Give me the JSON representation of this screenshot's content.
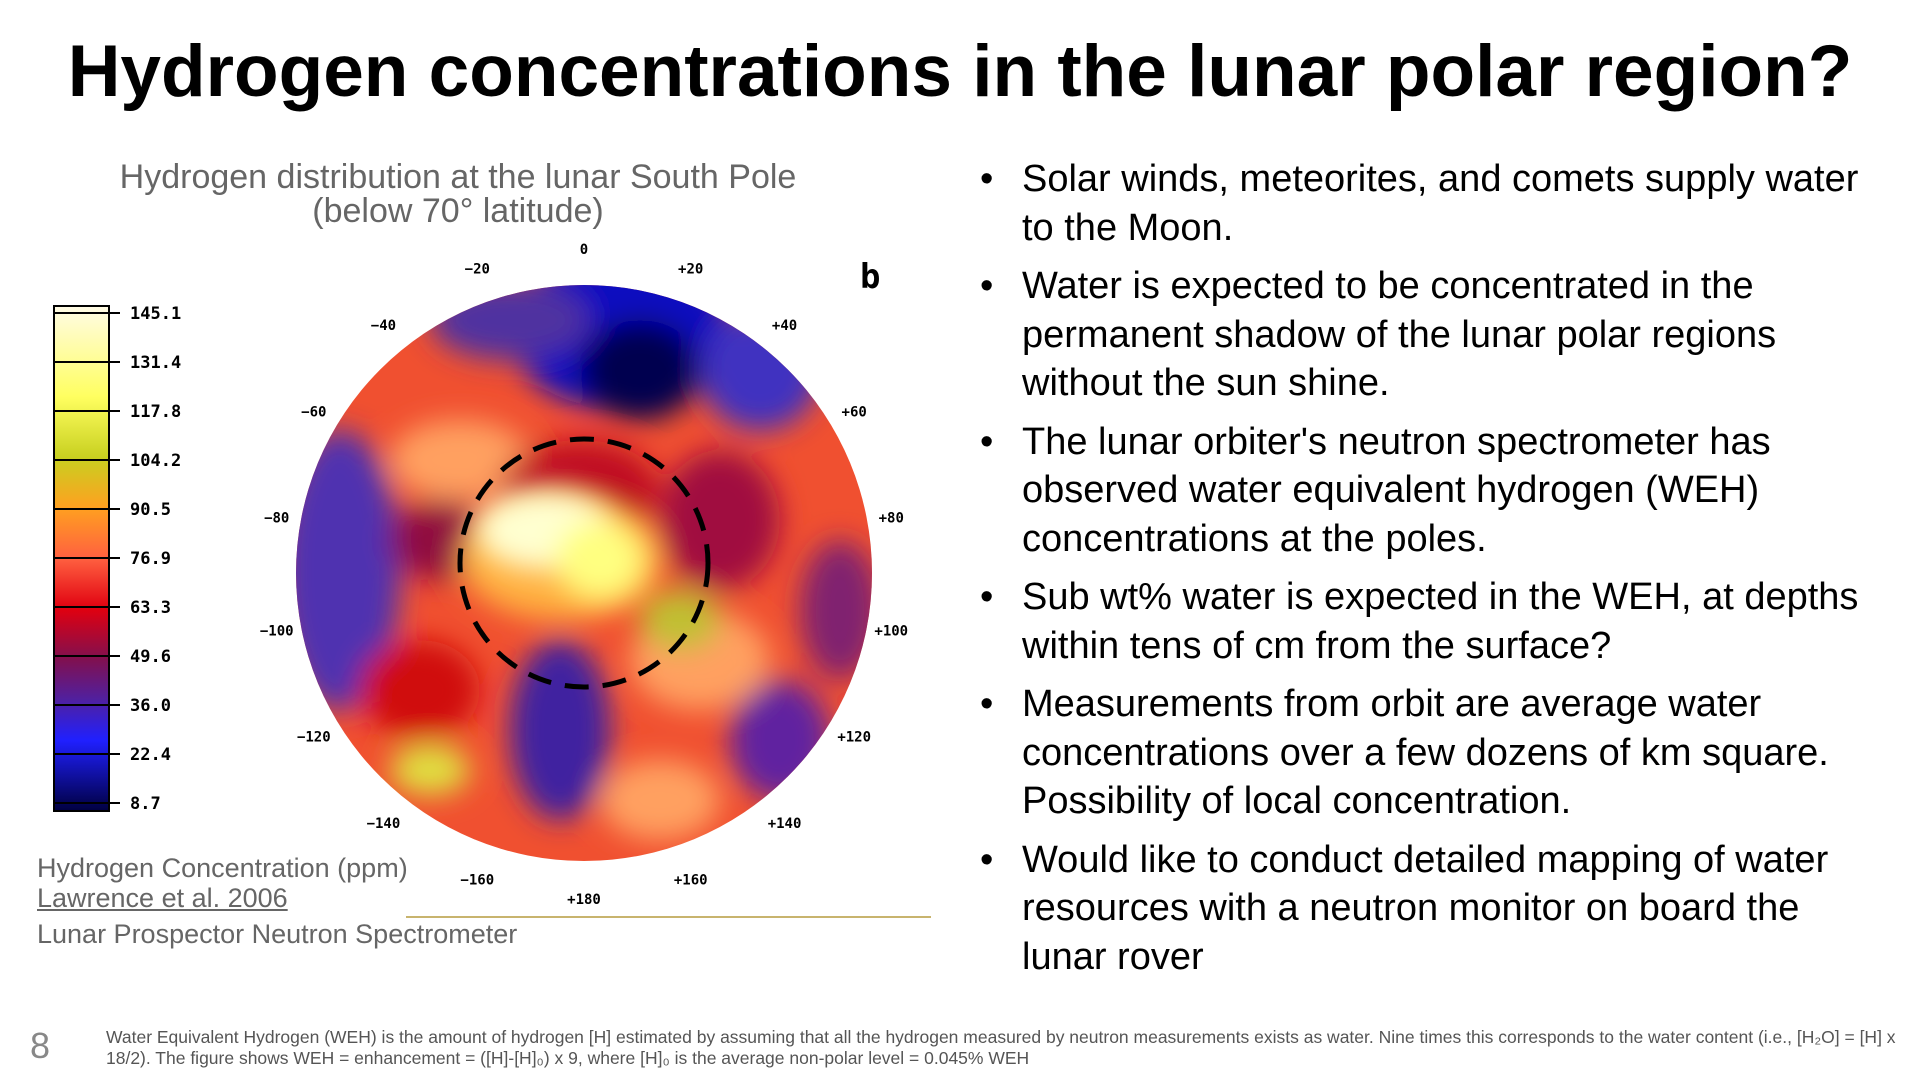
{
  "title": "Hydrogen concentrations in the lunar polar region?",
  "figure": {
    "caption_line1": "Hydrogen distribution at the lunar South Pole",
    "caption_line2": "(below 70° latitude)",
    "panel_label": "b",
    "colorbar_labels": [
      "145.1",
      "131.4",
      "117.8",
      "104.2",
      "90.5",
      "76.9",
      "63.3",
      "49.6",
      "36.0",
      "22.4",
      "8.7"
    ],
    "longitude_labels": [
      "0",
      "+20",
      "+40",
      "+60",
      "+80",
      "+100",
      "+120",
      "+140",
      "+160",
      "+180",
      "−160",
      "−140",
      "−120",
      "−100",
      "−80",
      "−60",
      "−40",
      "−20"
    ],
    "units_label": "Hydrogen Concentration (ppm)",
    "citation": "Lawrence et al. 2006",
    "instrument": "Lunar Prospector Neutron Spectrometer"
  },
  "bullets": [
    "Solar winds, meteorites, and comets supply water to the Moon.",
    "Water is expected to be concentrated in the permanent shadow of the lunar polar regions without the sun shine.",
    "The lunar orbiter's neutron spectrometer has observed water equivalent hydrogen (WEH) concentrations at the poles.",
    "Sub wt% water is expected in the WEH, at depths within tens of cm from the surface?",
    "Measurements from orbit are average water concentrations over a few dozens of km square. Possibility of local concentration.",
    "Would like to conduct detailed mapping of water resources with a neutron monitor on board the lunar rover"
  ],
  "page_number": "8",
  "footnote": "Water Equivalent Hydrogen (WEH) is the amount of hydrogen [H] estimated by assuming that all the hydrogen measured by neutron measurements  exists as water. Nine times this corresponds to the water content (i.e., [H₂O] = [H] x 18/2). The figure shows WEH = enhancement = ([H]-[H]₀) x 9, where [H]₀ is the average non-polar level = 0.045% WEH"
}
